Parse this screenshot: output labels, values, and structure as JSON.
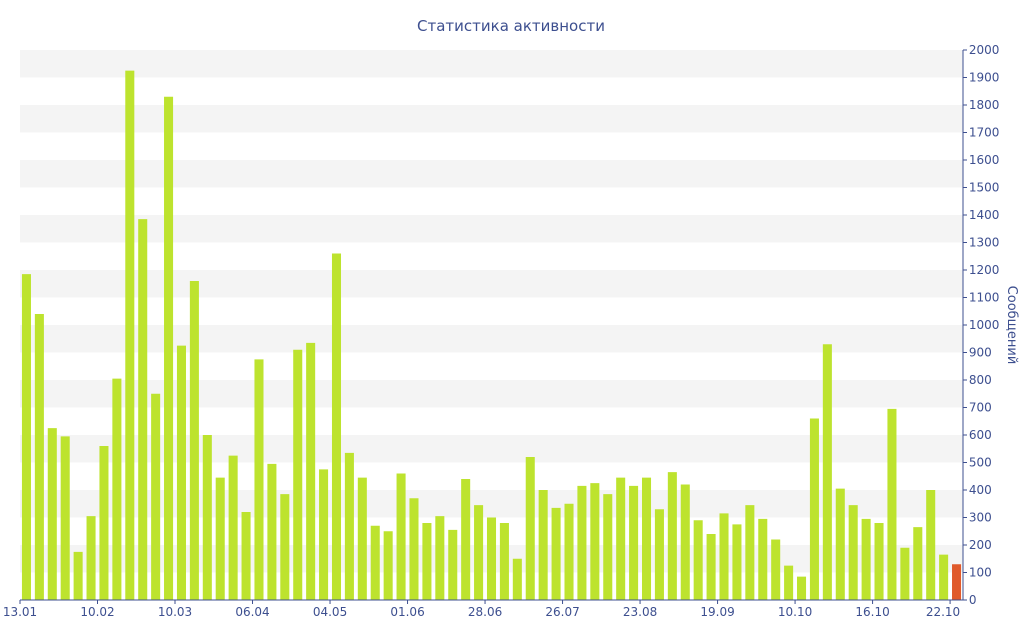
{
  "chart_data": {
    "type": "bar",
    "title": "Статистика активности",
    "ylabel": "Сообщений",
    "xlabel": "",
    "ylim": [
      0,
      2000
    ],
    "y_ticks": [
      0,
      100,
      200,
      300,
      400,
      500,
      600,
      700,
      800,
      900,
      1000,
      1100,
      1200,
      1300,
      1400,
      1500,
      1600,
      1700,
      1800,
      1900,
      2000
    ],
    "y_axis_position": "right",
    "grid": "alternating horizontal bands",
    "x_tick_labels": [
      {
        "label": "13.01",
        "index": 0
      },
      {
        "label": "10.02",
        "index": 6
      },
      {
        "label": "10.03",
        "index": 12
      },
      {
        "label": "06.04",
        "index": 18
      },
      {
        "label": "04.05",
        "index": 24
      },
      {
        "label": "01.06",
        "index": 30
      },
      {
        "label": "28.06",
        "index": 36
      },
      {
        "label": "26.07",
        "index": 42
      },
      {
        "label": "23.08",
        "index": 48
      },
      {
        "label": "19.09",
        "index": 54
      },
      {
        "label": "10.10",
        "index": 60
      },
      {
        "label": "16.10",
        "index": 66
      },
      {
        "label": "22.10",
        "index": 72
      }
    ],
    "series": [
      {
        "values": [
          1185,
          1040,
          625,
          595,
          175,
          305,
          560,
          805,
          1925,
          1385,
          750,
          1830,
          925,
          1160,
          600,
          445,
          525,
          320,
          875,
          495,
          385,
          910,
          935,
          475,
          1260,
          535,
          445,
          270,
          250,
          460,
          370,
          280,
          305,
          255,
          440,
          345,
          300,
          280,
          150,
          520,
          400,
          335,
          350,
          415,
          425,
          385,
          445,
          415,
          445,
          330,
          465,
          420,
          290,
          240,
          315,
          275,
          345,
          295,
          220,
          125,
          85,
          660,
          930,
          405,
          345,
          295,
          280,
          695,
          190,
          265,
          400,
          165,
          130
        ]
      }
    ],
    "colors": {
      "bar": "#bde32e",
      "highlight": "#e05a2b",
      "axis": "#3d4f8f",
      "band": "#f4f4f4"
    },
    "highlight_index": 72
  }
}
